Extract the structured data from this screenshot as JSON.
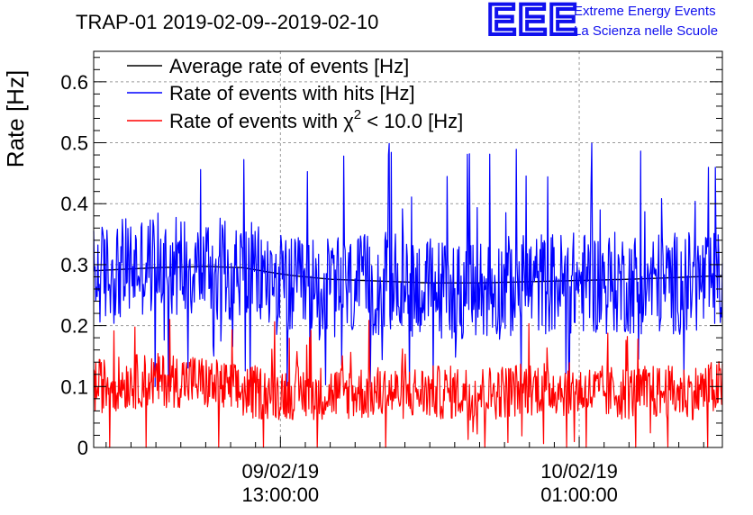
{
  "title": "TRAP-01 2019-02-09--2019-02-10",
  "logo": {
    "mark": "EEE",
    "line1": "Extreme Energy Events",
    "line2": "La Scienza nelle Scuole",
    "color": "#1010ee"
  },
  "chart_data": {
    "type": "line",
    "title": "TRAP-01 2019-02-09--2019-02-10",
    "xlabel": "",
    "ylabel": "Rate [Hz]",
    "xlim": [
      "2019-02-09 05:30:00",
      "2019-02-10 06:45:00"
    ],
    "ylim": [
      0,
      0.65
    ],
    "yticks": [
      0,
      0.1,
      0.2,
      0.3,
      0.4,
      0.5,
      0.6
    ],
    "ytick_labels": [
      "0",
      "0.1",
      "0.2",
      "0.3",
      "0.4",
      "0.5",
      "0.6"
    ],
    "xticks": [
      {
        "value": "2019-02-09 13:00:00",
        "date_label": "09/02/19",
        "time_label": "13:00:00"
      },
      {
        "value": "2019-02-10 01:00:00",
        "date_label": "10/02/19",
        "time_label": "01:00:00"
      }
    ],
    "grid": true,
    "legend": {
      "position": "top-left",
      "entries": [
        {
          "name": "Average rate of events [Hz]",
          "color": "#000000"
        },
        {
          "name": "Rate of events with hits [Hz]",
          "color": "#0000ff"
        },
        {
          "name_prefix": "Rate of events with ",
          "name_symbol": "χ",
          "name_superscript": "2",
          "name_suffix": " < 10.0 [Hz]",
          "color": "#ff0000"
        }
      ]
    },
    "series": [
      {
        "name": "Average rate of events [Hz]",
        "color": "#000000",
        "x": [
          "2019-02-09 05:30:00",
          "2019-02-09 08:00:00",
          "2019-02-09 10:00:00",
          "2019-02-09 11:30:00",
          "2019-02-09 12:30:00",
          "2019-02-09 13:30:00",
          "2019-02-09 15:00:00",
          "2019-02-09 17:00:00",
          "2019-02-09 19:00:00",
          "2019-02-09 21:00:00",
          "2019-02-09 23:00:00",
          "2019-02-10 01:00:00",
          "2019-02-10 03:00:00",
          "2019-02-10 05:00:00",
          "2019-02-10 06:45:00"
        ],
        "y": [
          0.29,
          0.295,
          0.297,
          0.295,
          0.288,
          0.282,
          0.276,
          0.273,
          0.27,
          0.27,
          0.272,
          0.274,
          0.276,
          0.279,
          0.282
        ]
      },
      {
        "name": "Rate of events with hits [Hz]",
        "color": "#0000ff",
        "x": [
          "2019-02-09 05:30:00",
          "2019-02-09 07:30:00",
          "2019-02-09 09:30:00",
          "2019-02-09 11:30:00",
          "2019-02-09 13:30:00",
          "2019-02-09 15:30:00",
          "2019-02-09 17:30:00",
          "2019-02-09 19:30:00",
          "2019-02-09 21:30:00",
          "2019-02-09 23:30:00",
          "2019-02-10 01:30:00",
          "2019-02-10 03:30:00",
          "2019-02-10 05:30:00",
          "2019-02-10 06:45:00"
        ],
        "y": [
          0.28,
          0.3,
          0.3,
          0.29,
          0.26,
          0.26,
          0.27,
          0.26,
          0.26,
          0.27,
          0.27,
          0.27,
          0.27,
          0.27
        ],
        "min": 0.1,
        "max": 0.5
      },
      {
        "name_prefix": "Rate of events with ",
        "name_symbol": "χ",
        "name_superscript": "2",
        "name_suffix": " < 10.0 [Hz]",
        "color": "#ff0000",
        "x": [
          "2019-02-09 05:30:00",
          "2019-02-09 07:30:00",
          "2019-02-09 09:30:00",
          "2019-02-09 11:30:00",
          "2019-02-09 13:30:00",
          "2019-02-09 15:30:00",
          "2019-02-09 17:30:00",
          "2019-02-09 19:30:00",
          "2019-02-09 21:30:00",
          "2019-02-09 23:30:00",
          "2019-02-10 01:30:00",
          "2019-02-10 03:30:00",
          "2019-02-10 05:30:00",
          "2019-02-10 06:45:00"
        ],
        "y": [
          0.1,
          0.11,
          0.11,
          0.09,
          0.09,
          0.09,
          0.09,
          0.09,
          0.09,
          0.1,
          0.09,
          0.09,
          0.09,
          0.1
        ],
        "min": 0.0,
        "max": 0.21
      }
    ]
  }
}
